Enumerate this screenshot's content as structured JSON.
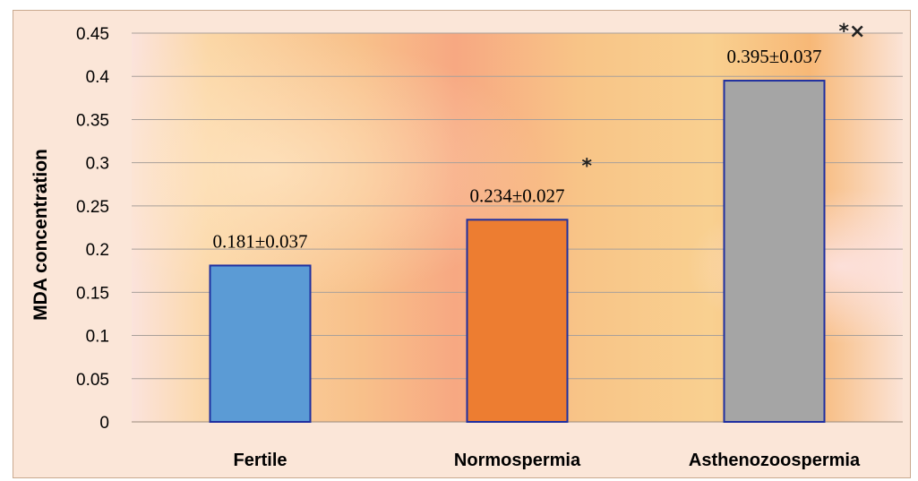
{
  "chart_data": {
    "type": "bar",
    "title": "",
    "xlabel": "",
    "ylabel": "MDA concentration",
    "ylim": [
      0,
      0.45
    ],
    "ytick_step": 0.05,
    "yticks": [
      "0",
      "0.05",
      "0.1",
      "0.15",
      "0.2",
      "0.25",
      "0.3",
      "0.35",
      "0.4",
      "0.45"
    ],
    "grid": true,
    "legend": "none",
    "categories": [
      "Fertile",
      "Normospermia",
      "Asthenozoospermia"
    ],
    "values": [
      0.181,
      0.234,
      0.395
    ],
    "errors": [
      0.037,
      0.027,
      0.037
    ],
    "data_labels": [
      "0.181±0.037",
      "0.234±0.027",
      "0.395±0.037"
    ],
    "significance_marks": [
      "",
      "*",
      "*×"
    ],
    "colors": [
      "#5b9bd5",
      "#ed7d31",
      "#a5a5a5"
    ],
    "bar_border_color": "#1f2fa0"
  }
}
